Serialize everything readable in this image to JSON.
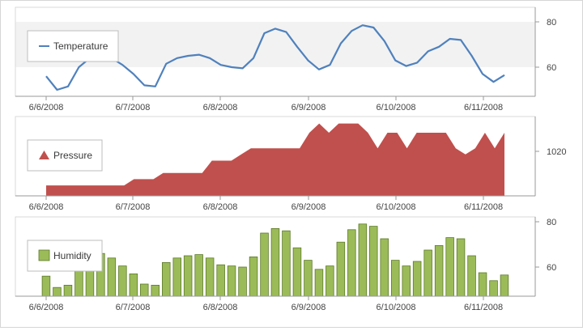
{
  "colors": {
    "temperature": "#4f81bd",
    "pressure": "#c0504d",
    "humidity": "#9bbb59",
    "humidity_stroke": "#5d7a2a",
    "axis": "#999999",
    "band": "#f2f2f2"
  },
  "chart_data": [
    {
      "type": "line",
      "x_tick_labels": [
        "6/6/2008",
        "6/7/2008",
        "6/8/2008",
        "6/9/2008",
        "6/10/2008",
        "6/11/2008"
      ],
      "y_tick_labels": [
        "60",
        "80"
      ],
      "ylim": [
        48,
        84
      ],
      "legend_placement": "top-left",
      "series": [
        {
          "name": "Temperature",
          "values": [
            56,
            50,
            51.5,
            60,
            64,
            66,
            64,
            61,
            57,
            52,
            51.5,
            61.5,
            64,
            65,
            65.5,
            64,
            61,
            60,
            59.5,
            64,
            75,
            77,
            75.5,
            69,
            63,
            59,
            61,
            70.5,
            76,
            78.5,
            77.5,
            71.5,
            63,
            60.5,
            62,
            67,
            69,
            72.5,
            72,
            65,
            57,
            53.5,
            56.5
          ]
        }
      ]
    },
    {
      "type": "area",
      "x_tick_labels": [
        "6/6/2008",
        "6/7/2008",
        "6/8/2008",
        "6/9/2008",
        "6/10/2008",
        "6/11/2008"
      ],
      "y_tick_labels": [
        "1020"
      ],
      "ylim": [
        1007,
        1030
      ],
      "legend_placement": "top-left",
      "series": [
        {
          "name": "Pressure",
          "values": [
            1009,
            1009,
            1009,
            1009,
            1009,
            1009,
            1009,
            1009,
            1009,
            1011,
            1011,
            1011,
            1013,
            1013,
            1013,
            1013,
            1013,
            1017,
            1017,
            1017,
            1019,
            1021,
            1021,
            1021,
            1021,
            1021,
            1021,
            1026,
            1029,
            1026,
            1029,
            1029,
            1029,
            1026,
            1021,
            1026,
            1026,
            1021,
            1026,
            1026,
            1026,
            1026,
            1021,
            1019,
            1021,
            1026,
            1021,
            1026
          ]
        }
      ]
    },
    {
      "type": "bar",
      "x_tick_labels": [
        "6/6/2008",
        "6/7/2008",
        "6/8/2008",
        "6/9/2008",
        "6/10/2008",
        "6/11/2008"
      ],
      "y_tick_labels": [
        "60",
        "80"
      ],
      "ylim": [
        48,
        84
      ],
      "legend_placement": "top-left",
      "series": [
        {
          "name": "Humidity",
          "values": [
            56,
            51,
            52,
            60.5,
            64,
            66,
            64,
            60.5,
            57,
            52.5,
            52,
            62,
            64,
            65,
            65.5,
            64,
            61,
            60.5,
            60,
            64.5,
            75,
            77,
            76,
            68.5,
            63,
            59,
            60.5,
            71,
            76.5,
            79,
            78,
            72.5,
            63,
            60.5,
            62.5,
            67.5,
            69.5,
            73,
            72.5,
            65,
            57.5,
            54,
            56.5
          ]
        }
      ]
    }
  ]
}
